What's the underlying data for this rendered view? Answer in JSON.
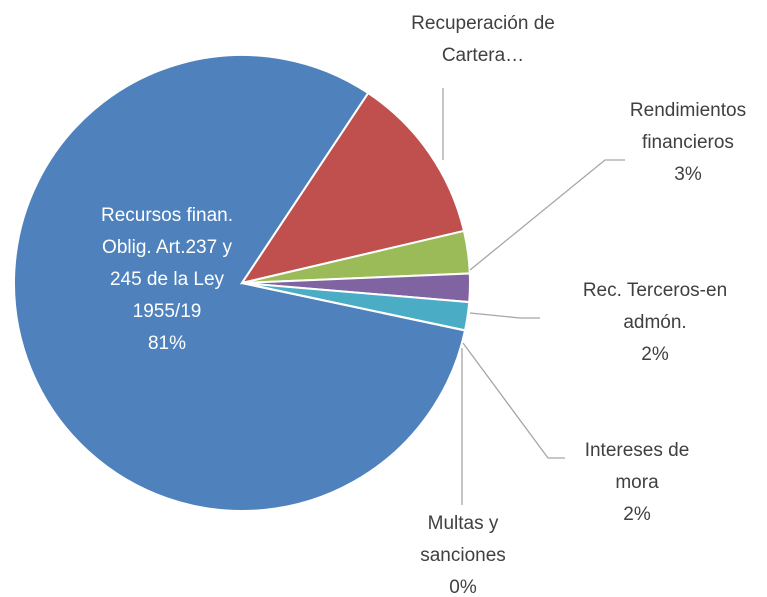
{
  "chart_data": {
    "type": "pie",
    "categories": [
      "Recursos finan. Oblig. Art.237 y 245 de la Ley 1955/19",
      "Recuperación de Cartera…",
      "Rendimientos financieros",
      "Rec. Terceros-en admón.",
      "Intereses de mora",
      "Multas y sanciones"
    ],
    "values": [
      81,
      12,
      3,
      2,
      2,
      0
    ],
    "value_labels": [
      "81%",
      null,
      "3%",
      "2%",
      "2%",
      "0%"
    ],
    "colors": [
      "#4f81bd",
      "#c0504d",
      "#9bbb59",
      "#8064a2",
      "#4bacc6",
      "#f79646"
    ]
  }
}
